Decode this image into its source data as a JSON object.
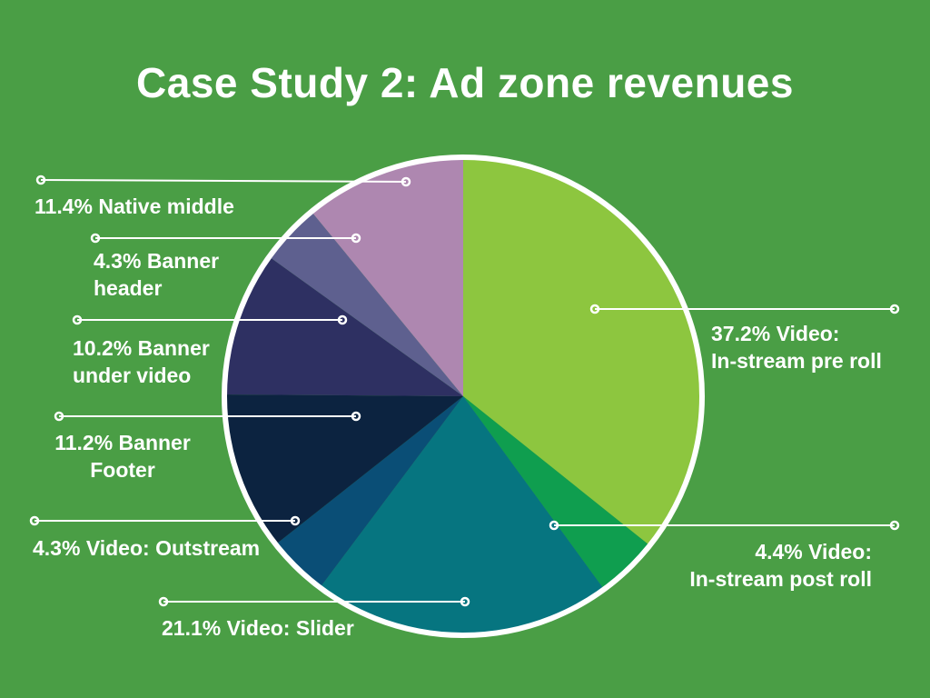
{
  "chart_data": {
    "type": "pie",
    "title": "Case Study 2: Ad zone revenues",
    "direction": "clockwise",
    "start_angle_deg": 0,
    "legend_position": "callout-labels",
    "colors": {
      "background": "#4a9e45",
      "text": "#ffffff",
      "outline": "#ffffff"
    },
    "slices": [
      {
        "label": "Video: In-stream pre roll",
        "value": 37.2,
        "display": "37.2% Video:\nIn-stream pre roll",
        "color": "#8dc63f"
      },
      {
        "label": "Video: In-stream post roll",
        "value": 4.4,
        "display": "4.4% Video:\nIn-stream post roll",
        "color": "#0f9e4f"
      },
      {
        "label": "Video: Slider",
        "value": 21.1,
        "display": "21.1% Video: Slider",
        "color": "#067580"
      },
      {
        "label": "Video: Outstream",
        "value": 4.3,
        "display": "4.3% Video: Outstream",
        "color": "#0a4e76"
      },
      {
        "label": "Banner Footer",
        "value": 11.2,
        "display": "11.2% Banner\nFooter",
        "color": "#0c2340"
      },
      {
        "label": "Banner under video",
        "value": 10.2,
        "display": "10.2% Banner\nunder video",
        "color": "#2e3062"
      },
      {
        "label": "Banner header",
        "value": 4.3,
        "display": "4.3% Banner\nheader",
        "color": "#5e608f"
      },
      {
        "label": "Native middle",
        "value": 11.4,
        "display": "11.4% Native middle",
        "color": "#ae87b0"
      }
    ]
  }
}
